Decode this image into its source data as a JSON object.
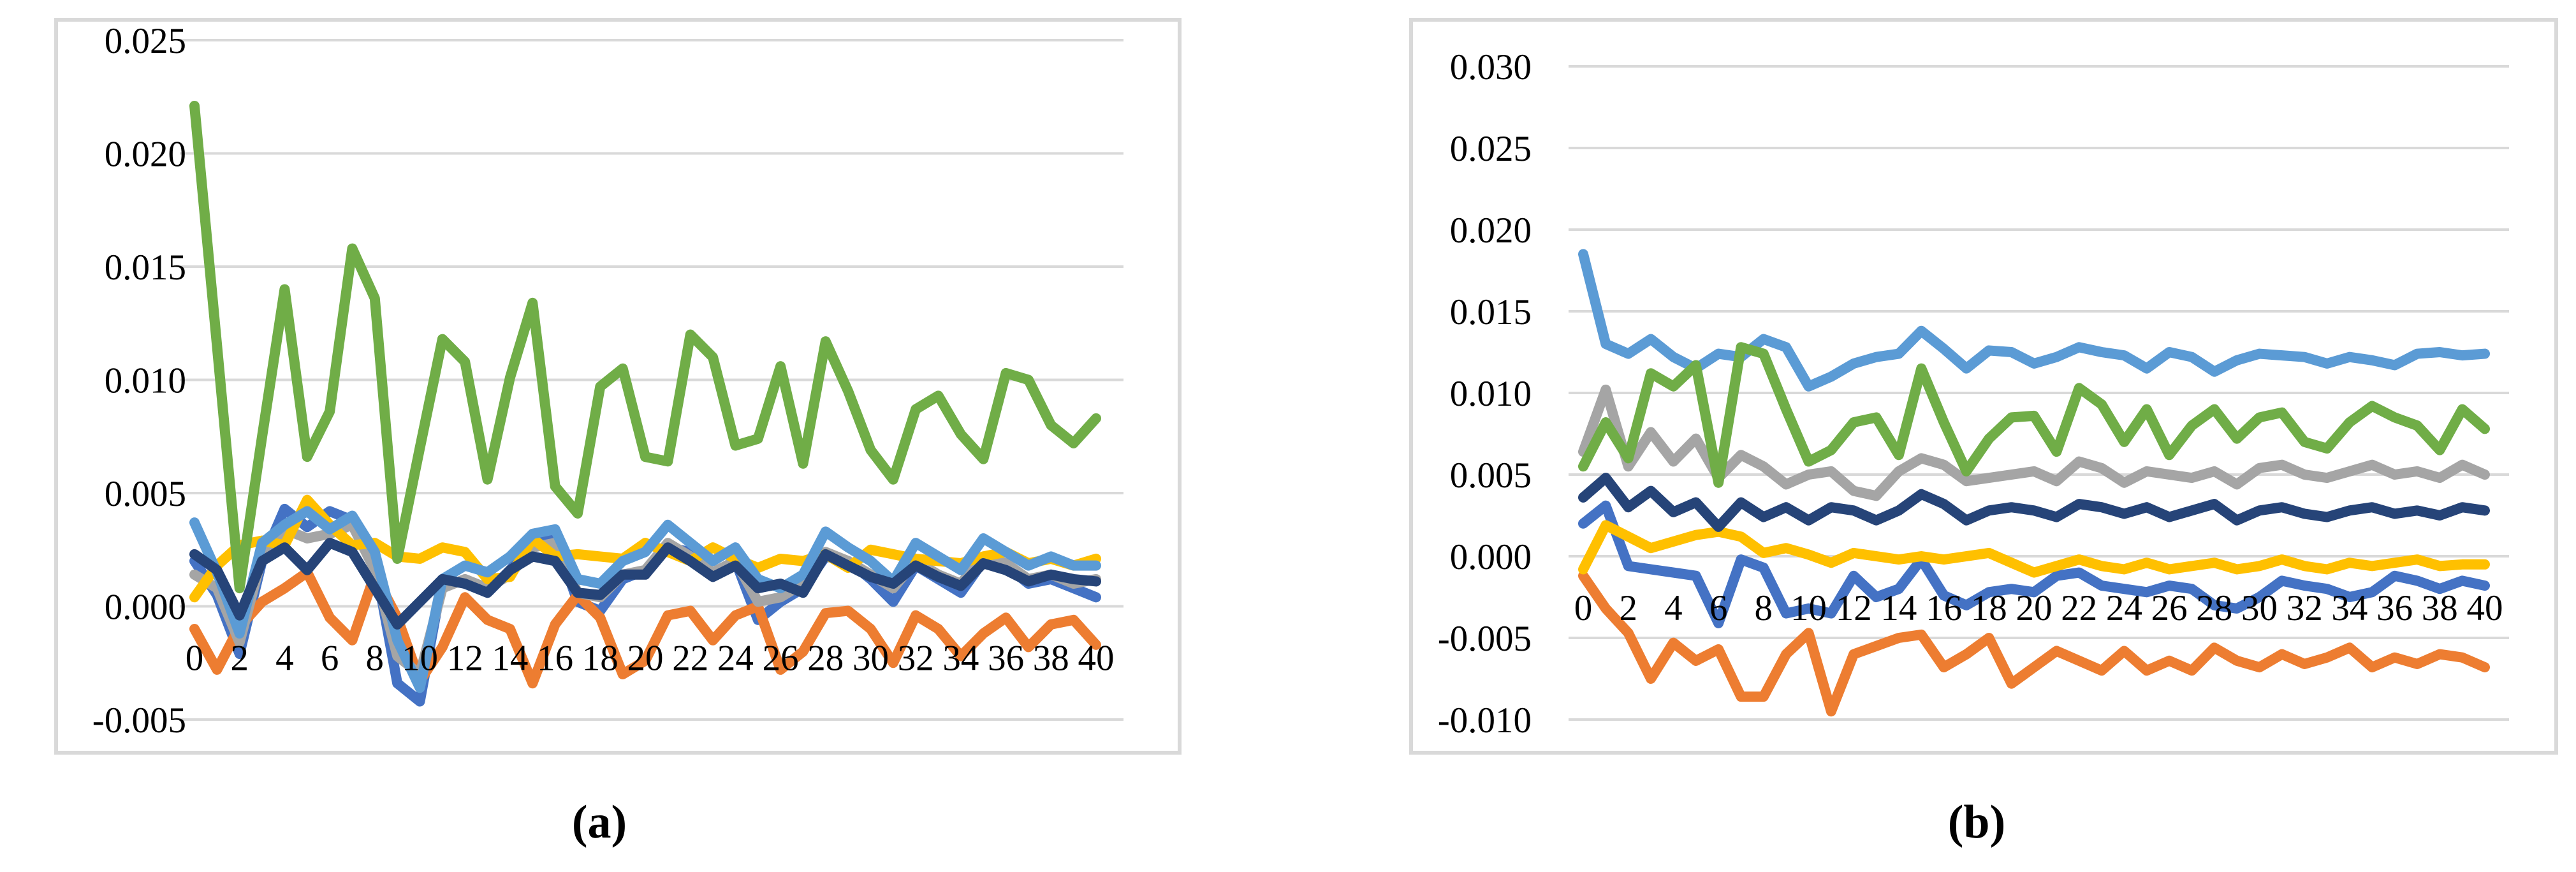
{
  "figure": {
    "background": "#ffffff",
    "border_color": "#d9d9d9",
    "gridline_color": "#d9d9d9",
    "text_color": "#000000",
    "captions": {
      "a": "(a)",
      "b": "(b)"
    }
  },
  "chart_data": [
    {
      "id": "a",
      "type": "line",
      "caption": "(a)",
      "title": "",
      "xlabel": "",
      "ylabel": "",
      "xlim": [
        0,
        40
      ],
      "ylim": [
        -0.005,
        0.025
      ],
      "y_tick_step": 0.005,
      "grid": true,
      "legend": "none",
      "x_tick_labels": [
        "0",
        "2",
        "4",
        "6",
        "8",
        "10",
        "12",
        "14",
        "16",
        "18",
        "20",
        "22",
        "24",
        "26",
        "28",
        "30",
        "32",
        "34",
        "36",
        "38",
        "40"
      ],
      "y_tick_labels": [
        "0.025",
        "0.020",
        "0.015",
        "0.010",
        "0.005",
        "0.000",
        "-0.005"
      ],
      "x_values": [
        0,
        1,
        2,
        3,
        4,
        5,
        6,
        7,
        8,
        9,
        10,
        11,
        12,
        13,
        14,
        15,
        16,
        17,
        18,
        19,
        20,
        21,
        22,
        23,
        24,
        25,
        26,
        27,
        28,
        29,
        30,
        31,
        32,
        33,
        34,
        35,
        36,
        37,
        38,
        39,
        40
      ],
      "series": [
        {
          "name": "royal-blue",
          "color": "#4472C4",
          "values": [
            0.002,
            0.0005,
            -0.0021,
            0.002,
            0.0043,
            0.0035,
            0.0042,
            0.0038,
            0.002,
            -0.0034,
            -0.0042,
            0.0012,
            0.001,
            0.0006,
            0.0016,
            0.0028,
            0.003,
            0.0002,
            -0.0002,
            0.0012,
            0.0016,
            0.0026,
            0.0024,
            0.0014,
            0.002,
            -0.0006,
            0.0002,
            0.0008,
            0.0022,
            0.002,
            0.0012,
            0.0002,
            0.0018,
            0.0012,
            0.0006,
            0.002,
            0.0018,
            0.001,
            0.0012,
            0.0008,
            0.0004
          ]
        },
        {
          "name": "orange",
          "color": "#ED7D31",
          "values": [
            -0.001,
            -0.0028,
            -0.0009,
            0.0002,
            0.0008,
            0.0015,
            -0.0005,
            -0.0015,
            0.0014,
            -0.0005,
            -0.0033,
            -0.0018,
            0.0004,
            -0.0006,
            -0.001,
            -0.0034,
            -0.0008,
            0.0005,
            -0.0005,
            -0.003,
            -0.0024,
            -0.0004,
            -0.0002,
            -0.0015,
            -0.0004,
            0.0,
            -0.0028,
            -0.002,
            -0.0003,
            -0.0002,
            -0.001,
            -0.0025,
            -0.0004,
            -0.001,
            -0.0022,
            -0.0012,
            -0.0005,
            -0.0018,
            -0.0008,
            -0.0006,
            -0.0017
          ]
        },
        {
          "name": "gray",
          "color": "#A5A5A5",
          "values": [
            0.0014,
            0.0008,
            -0.0016,
            0.0022,
            0.0034,
            0.003,
            0.0032,
            0.0036,
            0.0016,
            -0.0022,
            -0.003,
            0.0008,
            0.0012,
            0.0008,
            0.0014,
            0.0026,
            0.0028,
            0.0006,
            0.0004,
            0.0014,
            0.0016,
            0.0028,
            0.0022,
            0.0015,
            0.002,
            0.0002,
            0.0004,
            0.001,
            0.0024,
            0.002,
            0.0014,
            0.0008,
            0.002,
            0.0014,
            0.001,
            0.0022,
            0.0019,
            0.0012,
            0.0014,
            0.001,
            0.0012
          ]
        },
        {
          "name": "yellow",
          "color": "#FFC000",
          "values": [
            0.0004,
            0.0018,
            0.0027,
            0.0029,
            0.0027,
            0.0047,
            0.0036,
            0.0027,
            0.0028,
            0.0022,
            0.0021,
            0.0026,
            0.0024,
            0.0012,
            0.0013,
            0.003,
            0.0022,
            0.0023,
            0.0022,
            0.0021,
            0.0028,
            0.0024,
            0.002,
            0.0026,
            0.0021,
            0.0017,
            0.0021,
            0.002,
            0.0023,
            0.0017,
            0.0025,
            0.0023,
            0.0021,
            0.002,
            0.0019,
            0.0022,
            0.0024,
            0.0019,
            0.0021,
            0.0018,
            0.0021
          ]
        },
        {
          "name": "light-blue",
          "color": "#5B9BD5",
          "values": [
            0.0037,
            0.0015,
            -0.0012,
            0.0028,
            0.0036,
            0.0042,
            0.0034,
            0.004,
            0.0024,
            -0.0015,
            -0.0036,
            0.0012,
            0.0018,
            0.0015,
            0.0022,
            0.0032,
            0.0034,
            0.0012,
            0.001,
            0.002,
            0.0024,
            0.0036,
            0.0028,
            0.002,
            0.0026,
            0.0012,
            0.0008,
            0.0014,
            0.0033,
            0.0026,
            0.002,
            0.0011,
            0.0028,
            0.0022,
            0.0016,
            0.003,
            0.0024,
            0.0018,
            0.0022,
            0.0018,
            0.0018
          ]
        },
        {
          "name": "green",
          "color": "#70AD47",
          "values": [
            0.0221,
            0.0115,
            0.0008,
            0.0075,
            0.014,
            0.0066,
            0.0086,
            0.0158,
            0.0136,
            0.0021,
            0.007,
            0.0118,
            0.0108,
            0.0056,
            0.0101,
            0.0134,
            0.0053,
            0.0041,
            0.0097,
            0.0105,
            0.0066,
            0.0064,
            0.012,
            0.011,
            0.0071,
            0.0074,
            0.0106,
            0.0063,
            0.0117,
            0.0095,
            0.0069,
            0.0056,
            0.0087,
            0.0093,
            0.0076,
            0.0065,
            0.0103,
            0.01,
            0.008,
            0.0072,
            0.0083
          ]
        },
        {
          "name": "navy",
          "color": "#264478",
          "values": [
            0.0023,
            0.0016,
            -0.0004,
            0.002,
            0.0026,
            0.0016,
            0.0028,
            0.0024,
            0.0008,
            -0.0008,
            0.0002,
            0.0012,
            0.001,
            0.0006,
            0.0016,
            0.0022,
            0.002,
            0.0006,
            0.0005,
            0.0014,
            0.0014,
            0.0026,
            0.002,
            0.0013,
            0.0018,
            0.0008,
            0.001,
            0.0006,
            0.0023,
            0.0018,
            0.0013,
            0.001,
            0.0018,
            0.0013,
            0.0009,
            0.0019,
            0.0016,
            0.0011,
            0.0014,
            0.0012,
            0.0011
          ]
        }
      ]
    },
    {
      "id": "b",
      "type": "line",
      "caption": "(b)",
      "title": "",
      "xlabel": "",
      "ylabel": "",
      "xlim": [
        0,
        40
      ],
      "ylim": [
        -0.01,
        0.03
      ],
      "y_tick_step": 0.005,
      "grid": true,
      "legend": "none",
      "x_tick_labels": [
        "0",
        "2",
        "4",
        "6",
        "8",
        "10",
        "12",
        "14",
        "16",
        "18",
        "20",
        "22",
        "24",
        "26",
        "28",
        "30",
        "32",
        "34",
        "36",
        "38",
        "40"
      ],
      "y_tick_labels": [
        "0.030",
        "0.025",
        "0.020",
        "0.015",
        "0.010",
        "0.005",
        "0.000",
        "-0.005",
        "-0.010"
      ],
      "x_values": [
        0,
        1,
        2,
        3,
        4,
        5,
        6,
        7,
        8,
        9,
        10,
        11,
        12,
        13,
        14,
        15,
        16,
        17,
        18,
        19,
        20,
        21,
        22,
        23,
        24,
        25,
        26,
        27,
        28,
        29,
        30,
        31,
        32,
        33,
        34,
        35,
        36,
        37,
        38,
        39,
        40
      ],
      "series": [
        {
          "name": "royal-blue",
          "color": "#4472C4",
          "values": [
            0.002,
            0.0031,
            -0.0006,
            -0.0008,
            -0.001,
            -0.0012,
            -0.0041,
            -0.0002,
            -0.0007,
            -0.0035,
            -0.0032,
            -0.0035,
            -0.0012,
            -0.0025,
            -0.002,
            -0.0002,
            -0.0024,
            -0.003,
            -0.0022,
            -0.002,
            -0.0022,
            -0.0012,
            -0.001,
            -0.0018,
            -0.002,
            -0.0022,
            -0.0018,
            -0.002,
            -0.003,
            -0.0032,
            -0.0025,
            -0.0015,
            -0.0018,
            -0.002,
            -0.0025,
            -0.0022,
            -0.0012,
            -0.0015,
            -0.002,
            -0.0015,
            -0.0018
          ]
        },
        {
          "name": "orange",
          "color": "#ED7D31",
          "values": [
            -0.0012,
            -0.0032,
            -0.0047,
            -0.0075,
            -0.0053,
            -0.0064,
            -0.0057,
            -0.0086,
            -0.0086,
            -0.006,
            -0.0047,
            -0.0095,
            -0.006,
            -0.0055,
            -0.005,
            -0.0048,
            -0.0068,
            -0.006,
            -0.005,
            -0.0078,
            -0.0068,
            -0.0058,
            -0.0064,
            -0.007,
            -0.0058,
            -0.007,
            -0.0064,
            -0.007,
            -0.0056,
            -0.0064,
            -0.0068,
            -0.006,
            -0.0066,
            -0.0062,
            -0.0056,
            -0.0068,
            -0.0062,
            -0.0066,
            -0.006,
            -0.0062,
            -0.0068
          ]
        },
        {
          "name": "gray",
          "color": "#A5A5A5",
          "values": [
            0.0064,
            0.0102,
            0.0055,
            0.0076,
            0.0058,
            0.0072,
            0.0048,
            0.0062,
            0.0055,
            0.0044,
            0.005,
            0.0052,
            0.004,
            0.0037,
            0.0052,
            0.006,
            0.0056,
            0.0046,
            0.0048,
            0.005,
            0.0052,
            0.0046,
            0.0058,
            0.0054,
            0.0045,
            0.0052,
            0.005,
            0.0048,
            0.0052,
            0.0044,
            0.0054,
            0.0056,
            0.005,
            0.0048,
            0.0052,
            0.0056,
            0.005,
            0.0052,
            0.0048,
            0.0056,
            0.005
          ]
        },
        {
          "name": "yellow",
          "color": "#FFC000",
          "values": [
            -0.0008,
            0.0019,
            0.0012,
            0.0005,
            0.0009,
            0.0013,
            0.0015,
            0.0012,
            0.0002,
            0.0005,
            0.0001,
            -0.0004,
            0.0002,
            0.0,
            -0.0002,
            0.0,
            -0.0002,
            0.0,
            0.0002,
            -0.0004,
            -0.001,
            -0.0006,
            -0.0002,
            -0.0006,
            -0.0008,
            -0.0004,
            -0.0008,
            -0.0006,
            -0.0004,
            -0.0008,
            -0.0006,
            -0.0002,
            -0.0006,
            -0.0008,
            -0.0004,
            -0.0006,
            -0.0004,
            -0.0002,
            -0.0006,
            -0.0005,
            -0.0005
          ]
        },
        {
          "name": "light-blue",
          "color": "#5B9BD5",
          "values": [
            0.0185,
            0.013,
            0.0124,
            0.0133,
            0.0122,
            0.0115,
            0.0124,
            0.0122,
            0.0133,
            0.0128,
            0.0104,
            0.011,
            0.0118,
            0.0122,
            0.0124,
            0.0138,
            0.0127,
            0.0115,
            0.0126,
            0.0125,
            0.0118,
            0.0122,
            0.0128,
            0.0125,
            0.0123,
            0.0115,
            0.0125,
            0.0122,
            0.0113,
            0.012,
            0.0124,
            0.0123,
            0.0122,
            0.0118,
            0.0122,
            0.012,
            0.0117,
            0.0124,
            0.0125,
            0.0123,
            0.0124
          ]
        },
        {
          "name": "green",
          "color": "#70AD47",
          "values": [
            0.0055,
            0.0082,
            0.006,
            0.0112,
            0.0104,
            0.0117,
            0.0045,
            0.0128,
            0.0124,
            0.009,
            0.0058,
            0.0065,
            0.0082,
            0.0085,
            0.0062,
            0.0115,
            0.0082,
            0.0052,
            0.0072,
            0.0085,
            0.0086,
            0.0064,
            0.0103,
            0.0093,
            0.007,
            0.009,
            0.0062,
            0.008,
            0.009,
            0.0072,
            0.0085,
            0.0088,
            0.007,
            0.0066,
            0.0082,
            0.0092,
            0.0085,
            0.008,
            0.0065,
            0.009,
            0.0078
          ]
        },
        {
          "name": "navy",
          "color": "#264478",
          "values": [
            0.0036,
            0.0048,
            0.003,
            0.004,
            0.0027,
            0.0033,
            0.0018,
            0.0033,
            0.0024,
            0.003,
            0.0022,
            0.003,
            0.0028,
            0.0022,
            0.0028,
            0.0038,
            0.0032,
            0.0022,
            0.0028,
            0.003,
            0.0028,
            0.0024,
            0.0032,
            0.003,
            0.0026,
            0.003,
            0.0024,
            0.0028,
            0.0032,
            0.0022,
            0.0028,
            0.003,
            0.0026,
            0.0024,
            0.0028,
            0.003,
            0.0026,
            0.0028,
            0.0025,
            0.003,
            0.0028
          ]
        }
      ]
    }
  ]
}
